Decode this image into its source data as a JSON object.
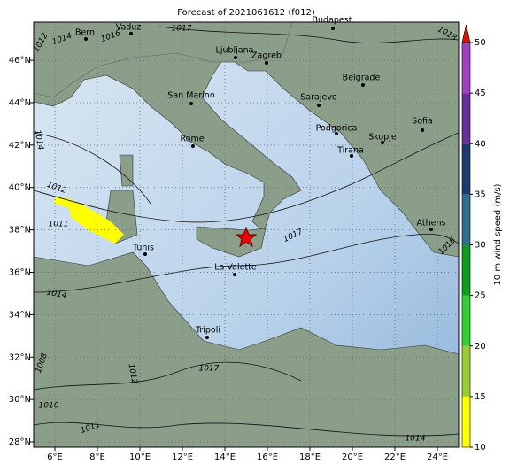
{
  "title": "Forecast of 2021061612 (f012)",
  "map": {
    "xlim": [
      5,
      25
    ],
    "ylim": [
      27.75,
      47.8
    ],
    "xticks": [
      {
        "value": 6,
        "label": "6°E"
      },
      {
        "value": 8,
        "label": "8°E"
      },
      {
        "value": 10,
        "label": "10°E"
      },
      {
        "value": 12,
        "label": "12°E"
      },
      {
        "value": 14,
        "label": "14°E"
      },
      {
        "value": 16,
        "label": "16°E"
      },
      {
        "value": 18,
        "label": "18°E"
      },
      {
        "value": 20,
        "label": "20°E"
      },
      {
        "value": 22,
        "label": "22°E"
      },
      {
        "value": 24,
        "label": "24°E"
      }
    ],
    "yticks": [
      {
        "value": 28,
        "label": "28°N"
      },
      {
        "value": 30,
        "label": "30°N"
      },
      {
        "value": 32,
        "label": "32°N"
      },
      {
        "value": 34,
        "label": "34°N"
      },
      {
        "value": 36,
        "label": "36°N"
      },
      {
        "value": 38,
        "label": "38°N"
      },
      {
        "value": 40,
        "label": "40°N"
      },
      {
        "value": 42,
        "label": "42°N"
      },
      {
        "value": 44,
        "label": "44°N"
      },
      {
        "value": 46,
        "label": "46°N"
      }
    ],
    "cities": [
      "Bern",
      "Vaduz",
      "Budapest",
      "Ljubljana",
      "Zagreb",
      "Belgrade",
      "San Marino",
      "Sarajevo",
      "Podgorica",
      "Sofia",
      "Rome",
      "Skopje",
      "Tirana",
      "Athens",
      "Tunis",
      "La Valette",
      "Tripoli"
    ],
    "isobar_labels": [
      "1012",
      "1014",
      "1016",
      "1017",
      "1018",
      "1014",
      "1012",
      "1011",
      "1014",
      "1017",
      "1016",
      "1017",
      "1012",
      "1008",
      "1010",
      "1011",
      "1014"
    ]
  },
  "colorbar": {
    "label": "10 m wind speed (m/s)",
    "ticks": [
      10,
      15,
      20,
      25,
      30,
      35,
      40,
      45,
      50
    ],
    "colors": [
      "#ffff00",
      "#9acd32",
      "#32cd32",
      "#109a20",
      "#2e6f8e",
      "#1f3a6e",
      "#6a2e9a",
      "#a040c0"
    ],
    "extend_color": "#dd1100"
  }
}
